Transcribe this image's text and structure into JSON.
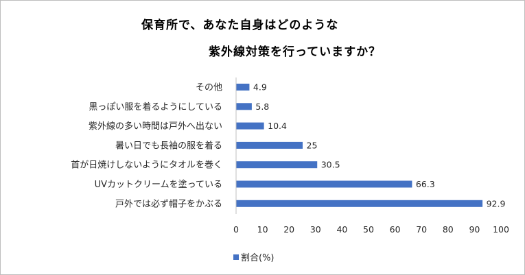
{
  "chart_data": {
    "type": "bar",
    "orientation": "horizontal",
    "title": [
      "保育所で、あなた自身はどのような",
      "紫外線対策を行っていますか？"
    ],
    "categories": [
      "その他",
      "黒っぽい服を着るようにしている",
      "紫外線の多い時間は戸外へ出ない",
      "暑い日でも長袖の服を着る",
      "首が日焼けしないようにタオルを巻く",
      "UVカットクリームを塗っている",
      "戸外では必ず帽子をかぶる"
    ],
    "series": [
      {
        "name": "割合(%)",
        "values": [
          4.9,
          5.8,
          10.4,
          25,
          30.5,
          66.3,
          92.9
        ]
      }
    ],
    "value_labels": [
      "4.9",
      "5.8",
      "10.4",
      "25",
      "30.5",
      "66.3",
      "92.9"
    ],
    "xlim": [
      0,
      100
    ],
    "ticks": [
      "0",
      "10",
      "20",
      "30",
      "40",
      "50",
      "60",
      "70",
      "80",
      "90",
      "100"
    ],
    "grid": false,
    "legend": "bottom",
    "bar_color": "#4472c4"
  }
}
